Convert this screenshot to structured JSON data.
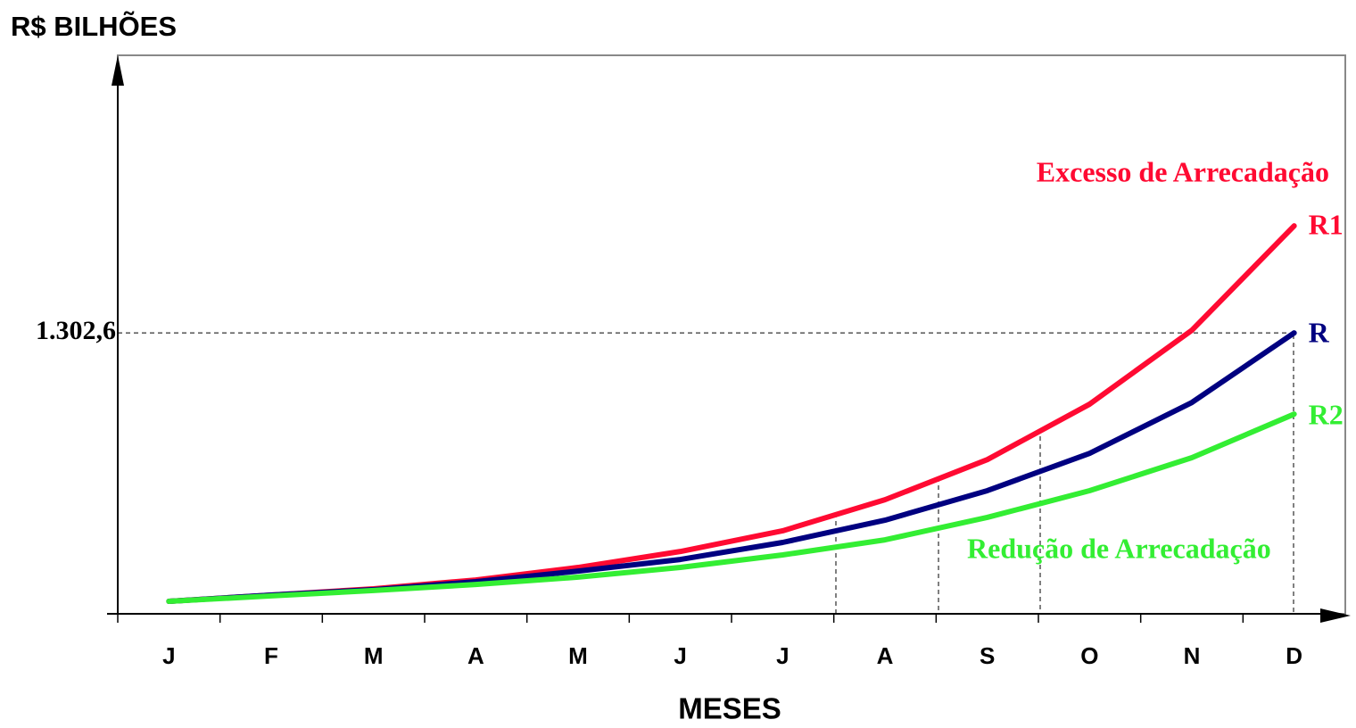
{
  "chart_data": {
    "type": "line",
    "y_axis_label": "R$ BILHÕES",
    "x_axis_label": "MESES",
    "annotations": [
      "Excesso de Arrecadação",
      "Redução de Arrecadação"
    ],
    "categories": [
      "J",
      "F",
      "M",
      "A",
      "M",
      "J",
      "J",
      "A",
      "S",
      "O",
      "N",
      "D"
    ],
    "ylim": [
      0,
      2590
    ],
    "yticks": [
      {
        "value": 1302.6,
        "label": "1.302,6"
      }
    ],
    "series": [
      {
        "name": "R1",
        "color": "#ff0a32",
        "values": [
          58,
          87,
          116,
          157,
          215,
          289,
          385,
          529,
          715,
          972,
          1315,
          1799
        ]
      },
      {
        "name": "R",
        "color": "#000080",
        "values": [
          58,
          87,
          112,
          149,
          198,
          252,
          331,
          434,
          571,
          744,
          980,
          1302.6
        ]
      },
      {
        "name": "R2",
        "color": "#33ee33",
        "values": [
          58,
          83,
          108,
          136,
          170,
          215,
          273,
          343,
          447,
          571,
          724,
          926
        ]
      }
    ]
  }
}
